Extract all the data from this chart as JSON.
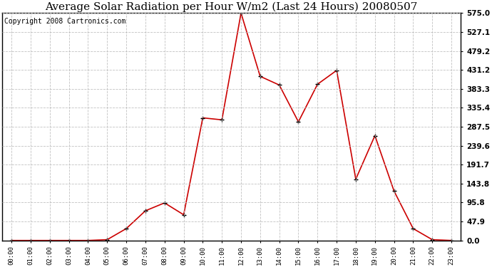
{
  "title": "Average Solar Radiation per Hour W/m2 (Last 24 Hours) 20080507",
  "copyright": "Copyright 2008 Cartronics.com",
  "hours": [
    "00:00",
    "01:00",
    "02:00",
    "03:00",
    "04:00",
    "05:00",
    "06:00",
    "07:00",
    "08:00",
    "09:00",
    "10:00",
    "11:00",
    "12:00",
    "13:00",
    "14:00",
    "15:00",
    "16:00",
    "17:00",
    "18:00",
    "19:00",
    "20:00",
    "21:00",
    "22:00",
    "23:00"
  ],
  "values": [
    0.0,
    0.0,
    0.0,
    0.0,
    0.0,
    2.0,
    30.0,
    75.0,
    95.0,
    65.0,
    310.0,
    305.0,
    575.0,
    415.0,
    393.0,
    300.0,
    395.0,
    430.0,
    155.0,
    265.0,
    125.0,
    30.0,
    2.0,
    0.0
  ],
  "line_color": "#cc0000",
  "marker": "+",
  "marker_color": "#000000",
  "bg_color": "#ffffff",
  "grid_color": "#bbbbbb",
  "ymin": 0.0,
  "ymax": 575.0,
  "ytick_values": [
    0.0,
    47.9,
    95.8,
    143.8,
    191.7,
    239.6,
    287.5,
    335.4,
    383.3,
    431.2,
    479.2,
    527.1,
    575.0
  ],
  "title_fontsize": 11,
  "copyright_fontsize": 7
}
